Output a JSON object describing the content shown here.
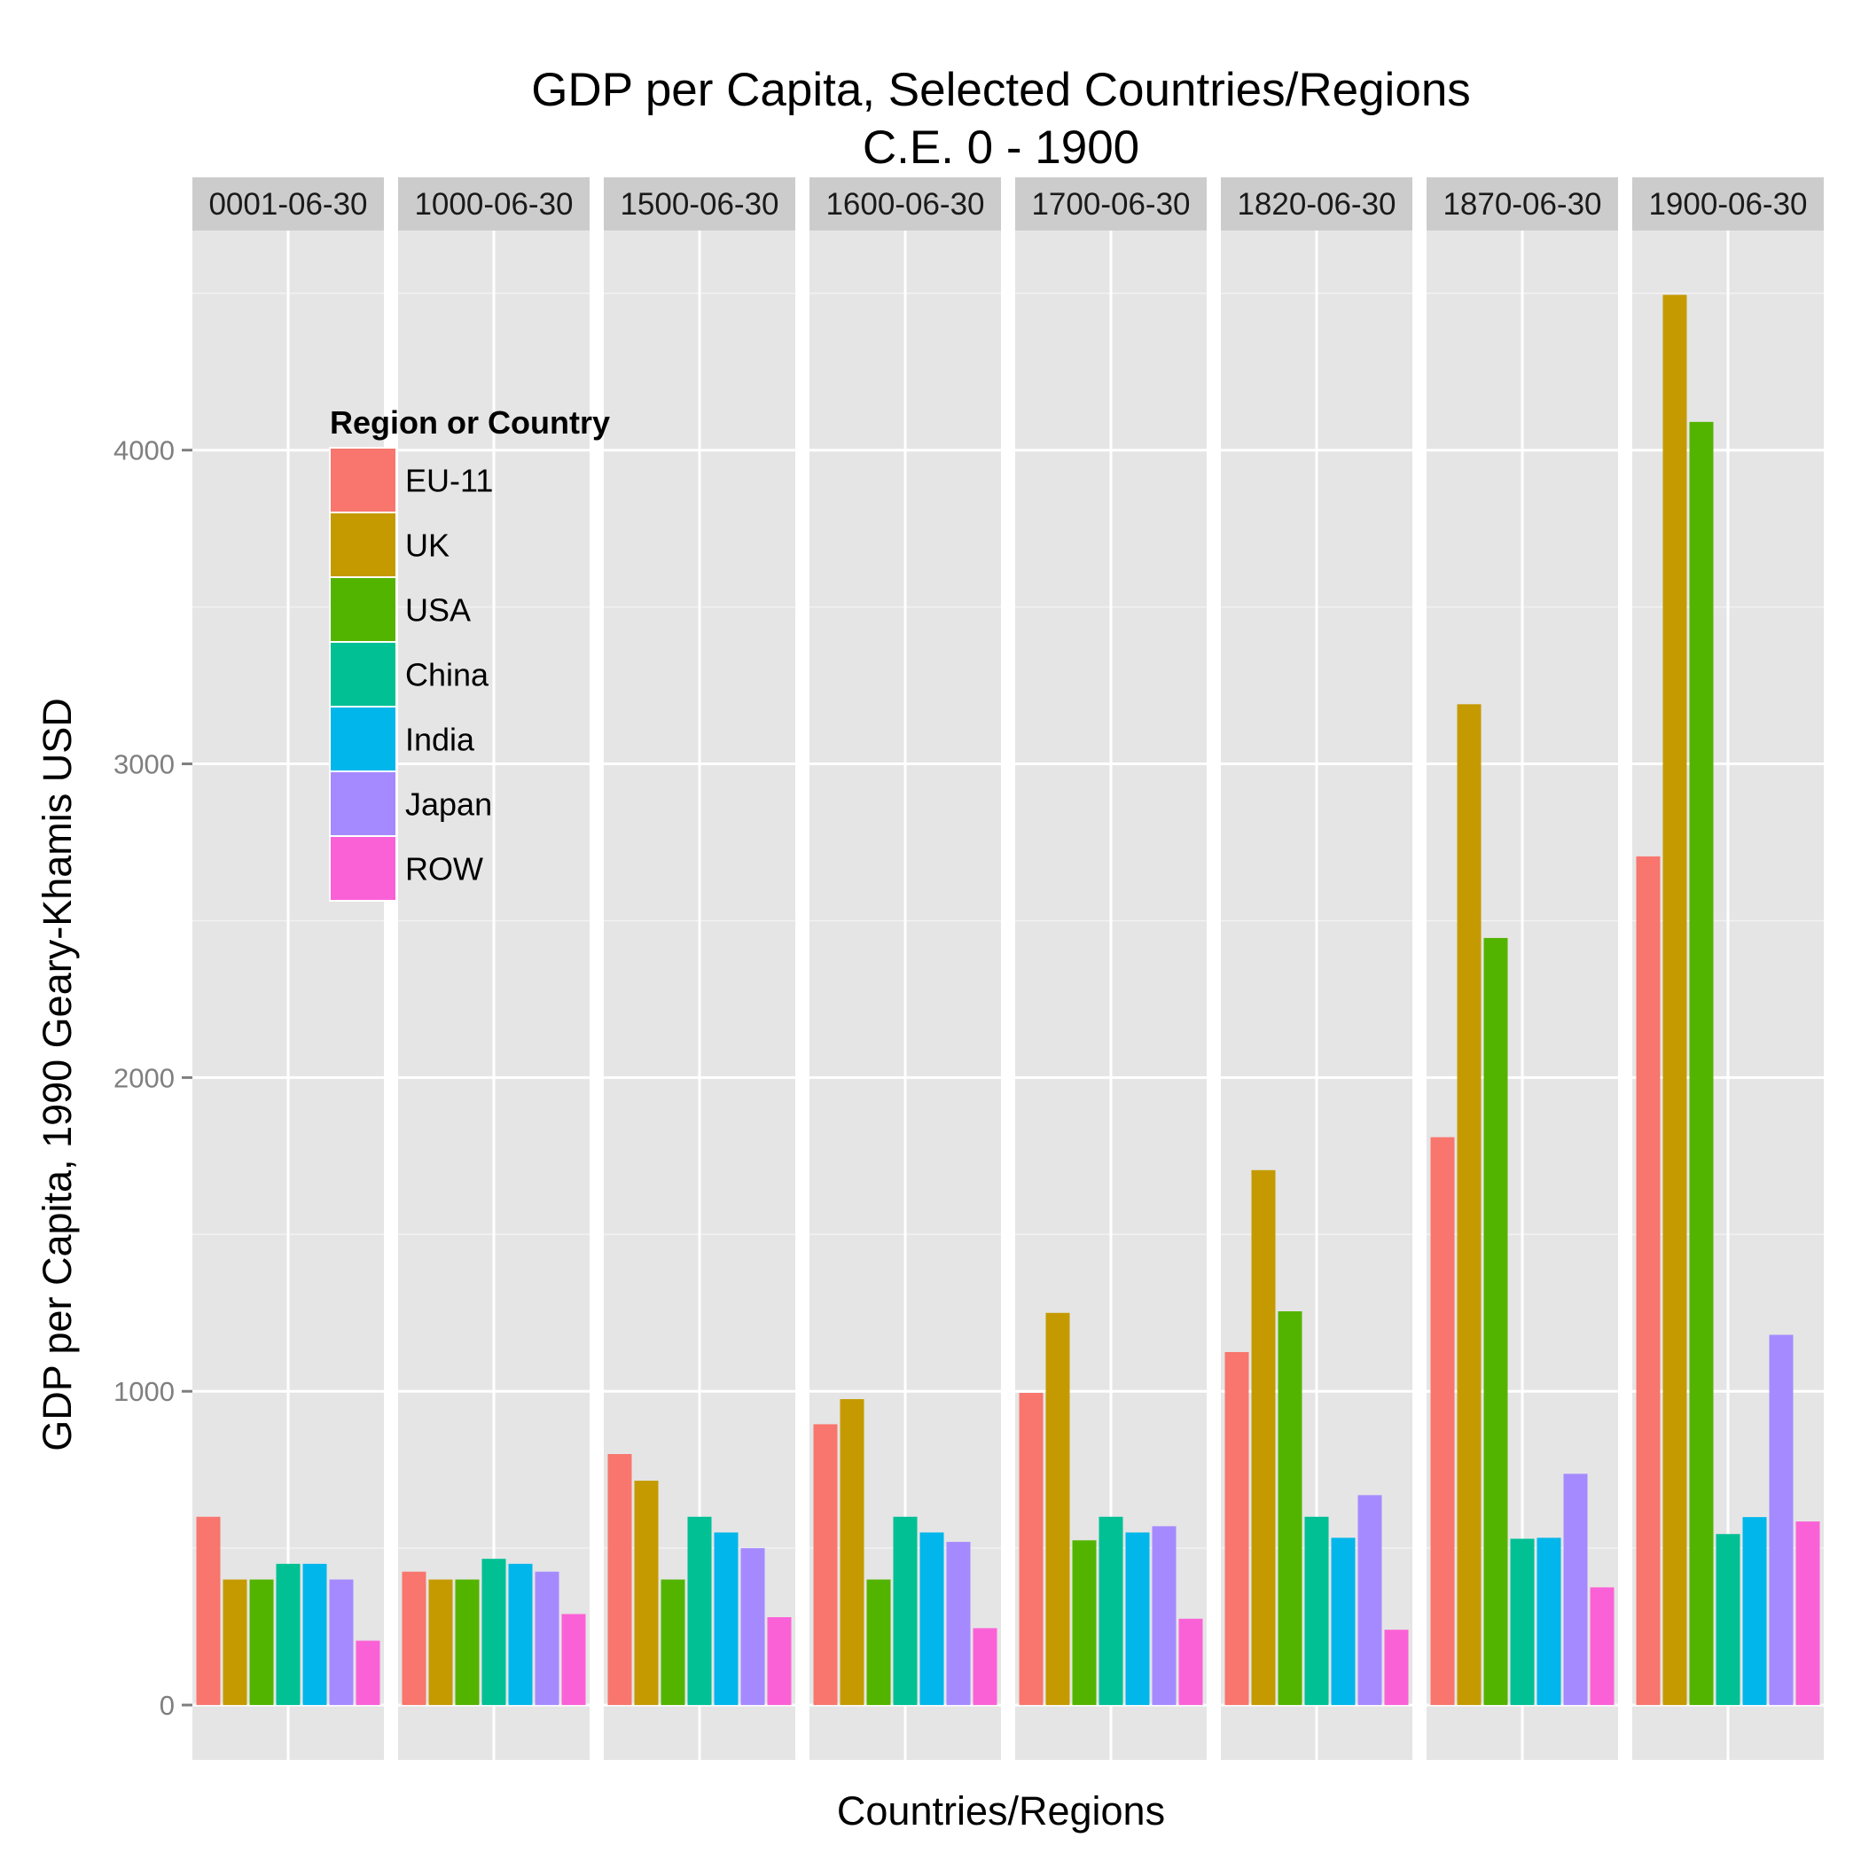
{
  "chart_data": {
    "type": "bar",
    "title_lines": [
      "GDP per Capita, Selected Countries/Regions",
      "C.E. 0 - 1900"
    ],
    "xlabel": "Countries/Regions",
    "ylabel": "GDP per Capita, 1990 Geary-Khamis USD",
    "ylim": [
      -175,
      4700
    ],
    "y_ticks": [
      0,
      1000,
      2000,
      3000,
      4000
    ],
    "grid": true,
    "legend": {
      "title": "Region or Country",
      "placement": "top-left inside"
    },
    "panels": [
      "0001-06-30",
      "1000-06-30",
      "1500-06-30",
      "1600-06-30",
      "1700-06-30",
      "1820-06-30",
      "1870-06-30",
      "1900-06-30"
    ],
    "series": [
      {
        "name": "EU-11",
        "color": "#F8766D",
        "values": [
          600,
          425,
          800,
          895,
          995,
          1125,
          1810,
          2705
        ]
      },
      {
        "name": "UK",
        "color": "#C49A00",
        "values": [
          400,
          400,
          715,
          975,
          1250,
          1705,
          3190,
          4495
        ]
      },
      {
        "name": "USA",
        "color": "#53B400",
        "values": [
          400,
          400,
          400,
          400,
          525,
          1255,
          2445,
          4090
        ]
      },
      {
        "name": "China",
        "color": "#00C094",
        "values": [
          450,
          466,
          600,
          600,
          600,
          600,
          530,
          545
        ]
      },
      {
        "name": "India",
        "color": "#00B6EB",
        "values": [
          450,
          450,
          550,
          550,
          550,
          533,
          533,
          599
        ]
      },
      {
        "name": "Japan",
        "color": "#A58AFF",
        "values": [
          400,
          425,
          500,
          520,
          570,
          669,
          737,
          1180
        ]
      },
      {
        "name": "ROW",
        "color": "#FB61D7",
        "values": [
          205,
          290,
          280,
          245,
          275,
          240,
          375,
          585
        ]
      }
    ]
  }
}
